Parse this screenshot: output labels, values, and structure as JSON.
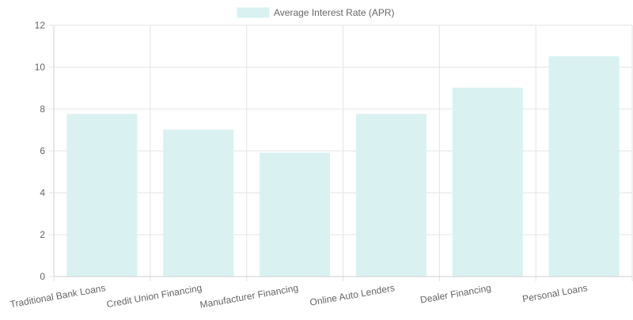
{
  "chart_data": {
    "type": "bar",
    "categories": [
      "Traditional Bank Loans",
      "Credit Union Financing",
      "Manufacturer Financing",
      "Online Auto Lenders",
      "Dealer Financing",
      "Personal Loans"
    ],
    "series": [
      {
        "name": "Average Interest Rate (APR)",
        "values": [
          7.75,
          7.0,
          5.9,
          7.75,
          9.0,
          10.5
        ]
      }
    ],
    "ylim": [
      0,
      12
    ],
    "yticks": [
      "0",
      "2",
      "4",
      "6",
      "8",
      "10",
      "12"
    ],
    "grid": true,
    "legend_position": "top",
    "colors": {
      "bar_fill": "#d9f1f1",
      "bar_stroke": "#d9f1f1",
      "grid": "#e3e3e3",
      "axis": "#cfcfcf",
      "text": "#666666"
    }
  }
}
